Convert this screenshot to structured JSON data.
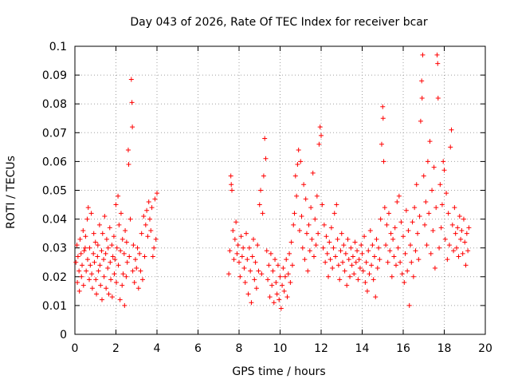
{
  "chart_data": {
    "type": "scatter",
    "title": "Day 043 of 2026, Rate Of TEC Index for receiver bcar",
    "xlabel": "GPS time / hours",
    "ylabel": "ROTI / TECUs",
    "xlim": [
      0,
      20
    ],
    "ylim": [
      0,
      0.1
    ],
    "xticks": [
      "0",
      "2",
      "4",
      "6",
      "8",
      "10",
      "12",
      "14",
      "16",
      "18",
      "20"
    ],
    "yticks": [
      "0",
      "0.01",
      "0.02",
      "0.03",
      "0.04",
      "0.05",
      "0.06",
      "0.07",
      "0.08",
      "0.09",
      "0.1"
    ],
    "grid": true,
    "marker": "+",
    "color": "#ff0000",
    "points": [
      [
        0.05,
        0.025
      ],
      [
        0.1,
        0.031
      ],
      [
        0.12,
        0.018
      ],
      [
        0.15,
        0.027
      ],
      [
        0.2,
        0.022
      ],
      [
        0.22,
        0.015
      ],
      [
        0.25,
        0.033
      ],
      [
        0.3,
        0.028
      ],
      [
        0.32,
        0.02
      ],
      [
        0.35,
        0.024
      ],
      [
        0.4,
        0.036
      ],
      [
        0.42,
        0.017
      ],
      [
        0.45,
        0.029
      ],
      [
        0.5,
        0.03
      ],
      [
        0.52,
        0.034
      ],
      [
        0.55,
        0.022
      ],
      [
        0.6,
        0.04
      ],
      [
        0.62,
        0.026
      ],
      [
        0.65,
        0.044
      ],
      [
        0.7,
        0.019
      ],
      [
        0.72,
        0.03
      ],
      [
        0.75,
        0.024
      ],
      [
        0.8,
        0.042
      ],
      [
        0.82,
        0.021
      ],
      [
        0.85,
        0.016
      ],
      [
        0.9,
        0.028
      ],
      [
        0.92,
        0.035
      ],
      [
        0.95,
        0.025
      ],
      [
        1.0,
        0.032
      ],
      [
        1.02,
        0.019
      ],
      [
        1.05,
        0.014
      ],
      [
        1.1,
        0.027
      ],
      [
        1.12,
        0.031
      ],
      [
        1.15,
        0.022
      ],
      [
        1.2,
        0.038
      ],
      [
        1.22,
        0.024
      ],
      [
        1.25,
        0.017
      ],
      [
        1.3,
        0.029
      ],
      [
        1.32,
        0.012
      ],
      [
        1.35,
        0.035
      ],
      [
        1.4,
        0.026
      ],
      [
        1.42,
        0.02
      ],
      [
        1.45,
        0.041
      ],
      [
        1.5,
        0.028
      ],
      [
        1.52,
        0.016
      ],
      [
        1.55,
        0.033
      ],
      [
        1.6,
        0.023
      ],
      [
        1.62,
        0.03
      ],
      [
        1.65,
        0.014
      ],
      [
        1.7,
        0.037
      ],
      [
        1.72,
        0.025
      ],
      [
        1.75,
        0.019
      ],
      [
        1.8,
        0.031
      ],
      [
        1.82,
        0.013
      ],
      [
        1.85,
        0.027
      ],
      [
        1.9,
        0.034
      ],
      [
        1.92,
        0.021
      ],
      [
        1.95,
        0.026
      ],
      [
        2.0,
        0.045
      ],
      [
        2.02,
        0.018
      ],
      [
        2.05,
        0.03
      ],
      [
        2.1,
        0.048
      ],
      [
        2.12,
        0.024
      ],
      [
        2.15,
        0.038
      ],
      [
        2.2,
        0.012
      ],
      [
        2.22,
        0.029
      ],
      [
        2.25,
        0.042
      ],
      [
        2.3,
        0.017
      ],
      [
        2.32,
        0.033
      ],
      [
        2.35,
        0.021
      ],
      [
        2.4,
        0.028
      ],
      [
        2.42,
        0.01
      ],
      [
        2.45,
        0.036
      ],
      [
        2.5,
        0.02
      ],
      [
        2.52,
        0.032
      ],
      [
        2.55,
        0.025
      ],
      [
        2.6,
        0.064
      ],
      [
        2.62,
        0.059
      ],
      [
        2.65,
        0.027
      ],
      [
        2.7,
        0.04
      ],
      [
        2.75,
        0.0885
      ],
      [
        2.78,
        0.0805
      ],
      [
        2.8,
        0.072
      ],
      [
        2.82,
        0.022
      ],
      [
        2.85,
        0.031
      ],
      [
        2.9,
        0.018
      ],
      [
        2.95,
        0.026
      ],
      [
        3.0,
        0.023
      ],
      [
        3.05,
        0.03
      ],
      [
        3.1,
        0.016
      ],
      [
        3.15,
        0.028
      ],
      [
        3.2,
        0.022
      ],
      [
        3.25,
        0.035
      ],
      [
        3.3,
        0.019
      ],
      [
        3.35,
        0.041
      ],
      [
        3.4,
        0.027
      ],
      [
        3.45,
        0.038
      ],
      [
        3.5,
        0.043
      ],
      [
        3.55,
        0.034
      ],
      [
        3.6,
        0.046
      ],
      [
        3.65,
        0.04
      ],
      [
        3.7,
        0.036
      ],
      [
        3.75,
        0.044
      ],
      [
        3.8,
        0.027
      ],
      [
        3.85,
        0.03
      ],
      [
        3.9,
        0.047
      ],
      [
        3.95,
        0.033
      ],
      [
        4.0,
        0.049
      ],
      [
        7.5,
        0.021
      ],
      [
        7.55,
        0.029
      ],
      [
        7.6,
        0.055
      ],
      [
        7.62,
        0.052
      ],
      [
        7.65,
        0.05
      ],
      [
        7.7,
        0.036
      ],
      [
        7.75,
        0.026
      ],
      [
        7.8,
        0.033
      ],
      [
        7.85,
        0.039
      ],
      [
        7.9,
        0.028
      ],
      [
        7.95,
        0.031
      ],
      [
        8.0,
        0.025
      ],
      [
        8.05,
        0.02
      ],
      [
        8.1,
        0.034
      ],
      [
        8.15,
        0.027
      ],
      [
        8.2,
        0.03
      ],
      [
        8.25,
        0.023
      ],
      [
        8.3,
        0.018
      ],
      [
        8.35,
        0.035
      ],
      [
        8.4,
        0.026
      ],
      [
        8.45,
        0.014
      ],
      [
        8.5,
        0.03
      ],
      [
        8.55,
        0.022
      ],
      [
        8.6,
        0.011
      ],
      [
        8.65,
        0.027
      ],
      [
        8.7,
        0.033
      ],
      [
        8.75,
        0.019
      ],
      [
        8.8,
        0.025
      ],
      [
        8.85,
        0.016
      ],
      [
        8.9,
        0.031
      ],
      [
        8.95,
        0.022
      ],
      [
        9.0,
        0.045
      ],
      [
        9.05,
        0.05
      ],
      [
        9.1,
        0.021
      ],
      [
        9.15,
        0.042
      ],
      [
        9.2,
        0.055
      ],
      [
        9.25,
        0.068
      ],
      [
        9.3,
        0.061
      ],
      [
        9.35,
        0.029
      ],
      [
        9.4,
        0.019
      ],
      [
        9.45,
        0.024
      ],
      [
        9.5,
        0.013
      ],
      [
        9.55,
        0.028
      ],
      [
        9.6,
        0.017
      ],
      [
        9.65,
        0.022
      ],
      [
        9.7,
        0.011
      ],
      [
        9.75,
        0.026
      ],
      [
        9.8,
        0.018
      ],
      [
        9.85,
        0.014
      ],
      [
        9.9,
        0.024
      ],
      [
        9.95,
        0.012
      ],
      [
        10.0,
        0.02
      ],
      [
        10.05,
        0.009
      ],
      [
        10.1,
        0.017
      ],
      [
        10.15,
        0.023
      ],
      [
        10.2,
        0.015
      ],
      [
        10.25,
        0.02
      ],
      [
        10.3,
        0.026
      ],
      [
        10.35,
        0.013
      ],
      [
        10.4,
        0.021
      ],
      [
        10.45,
        0.028
      ],
      [
        10.5,
        0.018
      ],
      [
        10.55,
        0.032
      ],
      [
        10.6,
        0.024
      ],
      [
        10.65,
        0.038
      ],
      [
        10.7,
        0.042
      ],
      [
        10.75,
        0.055
      ],
      [
        10.8,
        0.048
      ],
      [
        10.85,
        0.059
      ],
      [
        10.9,
        0.064
      ],
      [
        10.95,
        0.036
      ],
      [
        11.0,
        0.06
      ],
      [
        11.05,
        0.041
      ],
      [
        11.1,
        0.03
      ],
      [
        11.15,
        0.052
      ],
      [
        11.2,
        0.026
      ],
      [
        11.25,
        0.047
      ],
      [
        11.3,
        0.035
      ],
      [
        11.35,
        0.022
      ],
      [
        11.4,
        0.038
      ],
      [
        11.45,
        0.029
      ],
      [
        11.5,
        0.044
      ],
      [
        11.55,
        0.033
      ],
      [
        11.6,
        0.056
      ],
      [
        11.65,
        0.027
      ],
      [
        11.7,
        0.04
      ],
      [
        11.75,
        0.031
      ],
      [
        11.8,
        0.048
      ],
      [
        11.85,
        0.035
      ],
      [
        11.9,
        0.066
      ],
      [
        11.95,
        0.072
      ],
      [
        12.0,
        0.069
      ],
      [
        12.05,
        0.045
      ],
      [
        12.1,
        0.03
      ],
      [
        12.15,
        0.038
      ],
      [
        12.2,
        0.025
      ],
      [
        12.25,
        0.034
      ],
      [
        12.3,
        0.028
      ],
      [
        12.35,
        0.02
      ],
      [
        12.4,
        0.032
      ],
      [
        12.45,
        0.026
      ],
      [
        12.5,
        0.037
      ],
      [
        12.55,
        0.023
      ],
      [
        12.6,
        0.03
      ],
      [
        12.65,
        0.042
      ],
      [
        12.7,
        0.027
      ],
      [
        12.75,
        0.045
      ],
      [
        12.8,
        0.033
      ],
      [
        12.85,
        0.024
      ],
      [
        12.9,
        0.019
      ],
      [
        12.95,
        0.029
      ],
      [
        13.0,
        0.035
      ],
      [
        13.05,
        0.025
      ],
      [
        13.1,
        0.031
      ],
      [
        13.15,
        0.022
      ],
      [
        13.2,
        0.028
      ],
      [
        13.25,
        0.017
      ],
      [
        13.3,
        0.033
      ],
      [
        13.35,
        0.026
      ],
      [
        13.4,
        0.02
      ],
      [
        13.45,
        0.03
      ],
      [
        13.5,
        0.024
      ],
      [
        13.55,
        0.027
      ],
      [
        13.6,
        0.021
      ],
      [
        13.65,
        0.032
      ],
      [
        13.7,
        0.025
      ],
      [
        13.75,
        0.029
      ],
      [
        13.8,
        0.019
      ],
      [
        13.85,
        0.026
      ],
      [
        13.9,
        0.023
      ],
      [
        13.95,
        0.031
      ],
      [
        14.0,
        0.028
      ],
      [
        14.05,
        0.022
      ],
      [
        14.1,
        0.034
      ],
      [
        14.15,
        0.018
      ],
      [
        14.2,
        0.025
      ],
      [
        14.25,
        0.015
      ],
      [
        14.3,
        0.029
      ],
      [
        14.35,
        0.021
      ],
      [
        14.4,
        0.036
      ],
      [
        14.45,
        0.024
      ],
      [
        14.5,
        0.031
      ],
      [
        14.55,
        0.019
      ],
      [
        14.6,
        0.027
      ],
      [
        14.65,
        0.013
      ],
      [
        14.7,
        0.033
      ],
      [
        14.75,
        0.023
      ],
      [
        14.8,
        0.03
      ],
      [
        14.85,
        0.026
      ],
      [
        14.9,
        0.04
      ],
      [
        14.95,
        0.066
      ],
      [
        15.0,
        0.079
      ],
      [
        15.02,
        0.075
      ],
      [
        15.05,
        0.06
      ],
      [
        15.1,
        0.044
      ],
      [
        15.15,
        0.031
      ],
      [
        15.2,
        0.038
      ],
      [
        15.25,
        0.025
      ],
      [
        15.3,
        0.042
      ],
      [
        15.35,
        0.029
      ],
      [
        15.4,
        0.035
      ],
      [
        15.45,
        0.02
      ],
      [
        15.5,
        0.033
      ],
      [
        15.55,
        0.027
      ],
      [
        15.6,
        0.037
      ],
      [
        15.65,
        0.024
      ],
      [
        15.7,
        0.046
      ],
      [
        15.75,
        0.03
      ],
      [
        15.8,
        0.048
      ],
      [
        15.85,
        0.025
      ],
      [
        15.9,
        0.039
      ],
      [
        15.95,
        0.021
      ],
      [
        16.0,
        0.034
      ],
      [
        16.05,
        0.018
      ],
      [
        16.1,
        0.028
      ],
      [
        16.15,
        0.043
      ],
      [
        16.2,
        0.022
      ],
      [
        16.25,
        0.036
      ],
      [
        16.3,
        0.01
      ],
      [
        16.35,
        0.031
      ],
      [
        16.4,
        0.025
      ],
      [
        16.45,
        0.039
      ],
      [
        16.5,
        0.02
      ],
      [
        16.55,
        0.044
      ],
      [
        16.6,
        0.029
      ],
      [
        16.65,
        0.052
      ],
      [
        16.7,
        0.035
      ],
      [
        16.75,
        0.026
      ],
      [
        16.8,
        0.041
      ],
      [
        16.85,
        0.074
      ],
      [
        16.9,
        0.088
      ],
      [
        16.92,
        0.082
      ],
      [
        16.95,
        0.097
      ],
      [
        17.0,
        0.055
      ],
      [
        17.05,
        0.038
      ],
      [
        17.1,
        0.046
      ],
      [
        17.15,
        0.031
      ],
      [
        17.2,
        0.06
      ],
      [
        17.25,
        0.042
      ],
      [
        17.3,
        0.067
      ],
      [
        17.35,
        0.028
      ],
      [
        17.4,
        0.05
      ],
      [
        17.45,
        0.036
      ],
      [
        17.5,
        0.058
      ],
      [
        17.55,
        0.023
      ],
      [
        17.6,
        0.044
      ],
      [
        17.65,
        0.097
      ],
      [
        17.68,
        0.094
      ],
      [
        17.7,
        0.082
      ],
      [
        17.75,
        0.03
      ],
      [
        17.8,
        0.052
      ],
      [
        17.85,
        0.037
      ],
      [
        17.9,
        0.045
      ],
      [
        17.95,
        0.06
      ],
      [
        18.0,
        0.057
      ],
      [
        18.05,
        0.033
      ],
      [
        18.1,
        0.049
      ],
      [
        18.15,
        0.026
      ],
      [
        18.2,
        0.042
      ],
      [
        18.25,
        0.031
      ],
      [
        18.3,
        0.065
      ],
      [
        18.35,
        0.071
      ],
      [
        18.4,
        0.038
      ],
      [
        18.45,
        0.029
      ],
      [
        18.5,
        0.044
      ],
      [
        18.55,
        0.035
      ],
      [
        18.6,
        0.03
      ],
      [
        18.65,
        0.037
      ],
      [
        18.7,
        0.027
      ],
      [
        18.75,
        0.041
      ],
      [
        18.8,
        0.033
      ],
      [
        18.85,
        0.036
      ],
      [
        18.9,
        0.028
      ],
      [
        18.95,
        0.04
      ],
      [
        19.0,
        0.032
      ],
      [
        19.05,
        0.024
      ],
      [
        19.1,
        0.035
      ],
      [
        19.15,
        0.029
      ],
      [
        19.2,
        0.037
      ]
    ]
  }
}
